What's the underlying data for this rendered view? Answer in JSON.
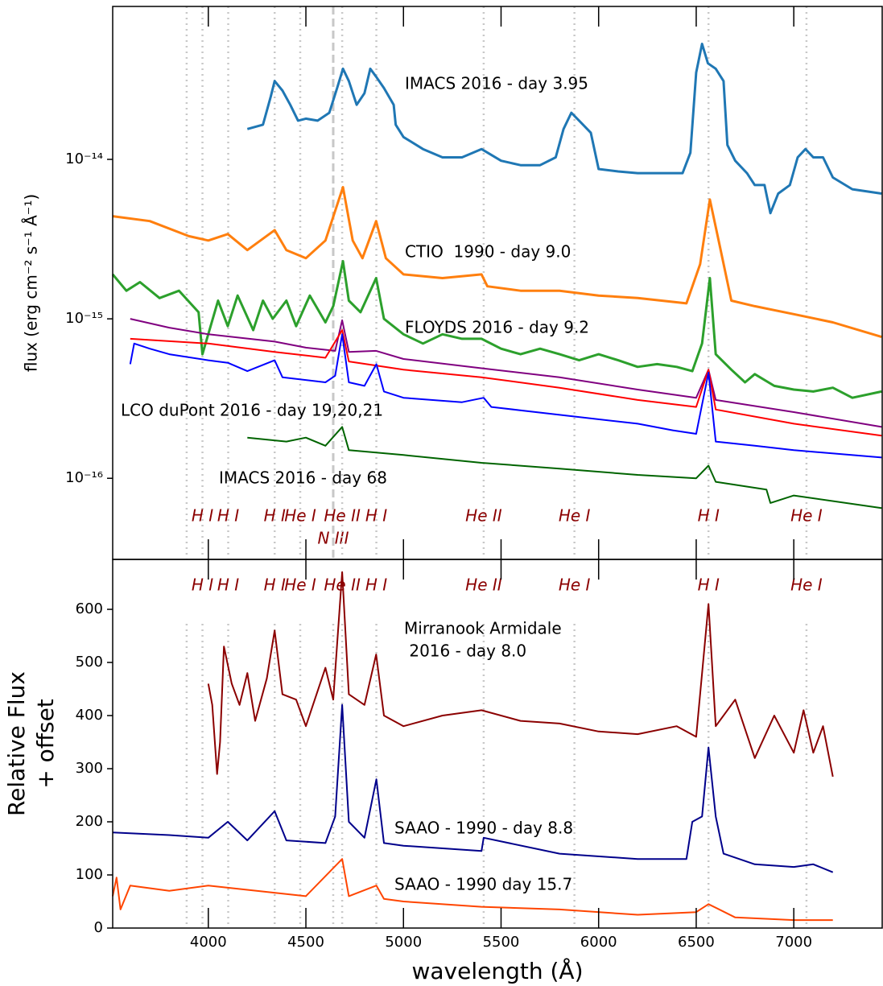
{
  "chart_data": [
    {
      "type": "line",
      "log_y": true,
      "ylabel": "flux (erg cm⁻² s⁻¹ Å⁻¹)",
      "xlim": [
        3510,
        7453
      ],
      "ylim": [
        3.1e-17,
        9.1e-14
      ],
      "yticks": [
        {
          "value": 1e-16,
          "label": "10⁻¹⁶"
        },
        {
          "value": 1e-15,
          "label": "10⁻¹⁵"
        },
        {
          "value": 1e-14,
          "label": "10⁻¹⁴"
        }
      ],
      "annotations": [
        "IMACS 2016 - day 3.95",
        "CTIO  1990 - day 9.0",
        "FLOYDS 2016 - day 9.2",
        "LCO duPont 2016 - day 19,20,21",
        "IMACS 2016 - day 68"
      ],
      "lines": [
        {
          "wavelength": 3889
        },
        {
          "wavelength": 3970,
          "label": "H I"
        },
        {
          "wavelength": 4102,
          "label": "H I"
        },
        {
          "wavelength": 4340,
          "label": "H I"
        },
        {
          "wavelength": 4471,
          "label": "He I"
        },
        {
          "wavelength": 4640,
          "label": "N III",
          "style": "dashed"
        },
        {
          "wavelength": 4686,
          "label": "He II"
        },
        {
          "wavelength": 4861,
          "label": "H I"
        },
        {
          "wavelength": 5411,
          "label": "He II"
        },
        {
          "wavelength": 5876,
          "label": "He I"
        },
        {
          "wavelength": 6563,
          "label": "H I"
        },
        {
          "wavelength": 7065,
          "label": "He I"
        }
      ],
      "series": [
        {
          "color": "#1f77b4",
          "x": [
            4200,
            4280,
            4320,
            4340,
            4380,
            4420,
            4460,
            4500,
            4560,
            4620,
            4660,
            4690,
            4720,
            4760,
            4800,
            4830,
            4860,
            4900,
            4950,
            4960,
            5000,
            5100,
            5200,
            5300,
            5400,
            5500,
            5600,
            5700,
            5780,
            5820,
            5860,
            5900,
            5960,
            6000,
            6100,
            6200,
            6300,
            6430,
            6470,
            6500,
            6530,
            6560,
            6600,
            6640,
            6660,
            6700,
            6760,
            6800,
            6850,
            6880,
            6920,
            6980,
            7020,
            7060,
            7100,
            7150,
            7200,
            7300,
            7450
          ],
          "values": [
            1.55e-14,
            1.65e-14,
            2.48e-14,
            3.1e-14,
            2.7e-14,
            2.2e-14,
            1.75e-14,
            1.8e-14,
            1.75e-14,
            1.96e-14,
            2.8e-14,
            3.7e-14,
            3.1e-14,
            2.2e-14,
            2.6e-14,
            3.7e-14,
            3.3e-14,
            2.8e-14,
            2.2e-14,
            1.65e-14,
            1.38e-14,
            1.16e-14,
            1.03e-14,
            1.03e-14,
            1.16e-14,
            9.8e-15,
            9.2e-15,
            9.2e-15,
            1.03e-14,
            1.55e-14,
            1.96e-14,
            1.75e-14,
            1.47e-14,
            8.7e-15,
            8.4e-15,
            8.2e-15,
            8.2e-15,
            8.2e-15,
            1.1e-14,
            3.5e-14,
            5.3e-14,
            4e-14,
            3.7e-14,
            3.1e-14,
            1.23e-14,
            9.8e-15,
            8.2e-15,
            6.9e-15,
            6.9e-15,
            4.6e-15,
            6.1e-15,
            6.9e-15,
            1.03e-14,
            1.16e-14,
            1.03e-14,
            1.03e-14,
            7.7e-15,
            6.5e-15,
            6.1e-15
          ]
        },
        {
          "color": "#ff7f0e",
          "x": [
            3510,
            3700,
            3900,
            4000,
            4100,
            4200,
            4340,
            4400,
            4500,
            4600,
            4690,
            4740,
            4790,
            4860,
            4910,
            5000,
            5200,
            5400,
            5430,
            5600,
            5800,
            6000,
            6200,
            6450,
            6520,
            6570,
            6620,
            6680,
            6800,
            7000,
            7200,
            7450
          ],
          "values": [
            4.4e-15,
            4.1e-15,
            3.3e-15,
            3.1e-15,
            3.4e-15,
            2.7e-15,
            3.6e-15,
            2.7e-15,
            2.4e-15,
            3.1e-15,
            6.7e-15,
            3.1e-15,
            2.4e-15,
            4.1e-15,
            2.4e-15,
            1.9e-15,
            1.8e-15,
            1.9e-15,
            1.6e-15,
            1.5e-15,
            1.5e-15,
            1.4e-15,
            1.35e-15,
            1.25e-15,
            2.2e-15,
            5.6e-15,
            2.9e-15,
            1.3e-15,
            1.2e-15,
            1.07e-15,
            9.5e-16,
            7.7e-16
          ]
        },
        {
          "color": "#2ca02c",
          "x": [
            3510,
            3580,
            3650,
            3750,
            3850,
            3950,
            3970,
            4050,
            4100,
            4150,
            4230,
            4280,
            4330,
            4400,
            4450,
            4520,
            4600,
            4640,
            4690,
            4720,
            4780,
            4860,
            4900,
            5000,
            5100,
            5200,
            5300,
            5400,
            5500,
            5600,
            5700,
            5800,
            5900,
            6000,
            6100,
            6200,
            6300,
            6400,
            6480,
            6530,
            6570,
            6600,
            6680,
            6750,
            6800,
            6900,
            7000,
            7100,
            7200,
            7300,
            7450
          ],
          "values": [
            1.9e-15,
            1.5e-15,
            1.7e-15,
            1.35e-15,
            1.5e-15,
            1.1e-15,
            6e-16,
            1.3e-15,
            9e-16,
            1.4e-15,
            8.5e-16,
            1.3e-15,
            1e-15,
            1.3e-15,
            9e-16,
            1.4e-15,
            9.5e-16,
            1.2e-15,
            2.3e-15,
            1.3e-15,
            1.1e-15,
            1.8e-15,
            1e-15,
            8e-16,
            7e-16,
            8e-16,
            7.5e-16,
            7.5e-16,
            6.5e-16,
            6e-16,
            6.5e-16,
            6e-16,
            5.5e-16,
            6e-16,
            5.5e-16,
            5e-16,
            5.2e-16,
            5e-16,
            4.7e-16,
            7e-16,
            1.8e-15,
            6e-16,
            4.8e-16,
            4e-16,
            4.5e-16,
            3.8e-16,
            3.6e-16,
            3.5e-16,
            3.7e-16,
            3.2e-16,
            3.5e-16
          ]
        },
        {
          "color": "#800080",
          "x": [
            3600,
            3800,
            4000,
            4340,
            4500,
            4650,
            4686,
            4720,
            4860,
            5000,
            5400,
            5800,
            6200,
            6500,
            6563,
            6600,
            7000,
            7450
          ],
          "values": [
            1e-15,
            8.8e-16,
            8e-16,
            7.2e-16,
            6.6e-16,
            6.3e-16,
            9.8e-16,
            6.2e-16,
            6.3e-16,
            5.6e-16,
            4.9e-16,
            4.3e-16,
            3.6e-16,
            3.2e-16,
            4.8e-16,
            3.1e-16,
            2.6e-16,
            2.1e-16
          ]
        },
        {
          "color": "#ff0000",
          "x": [
            3600,
            4000,
            4340,
            4600,
            4686,
            4720,
            5000,
            5400,
            5800,
            6200,
            6500,
            6563,
            6600,
            7000,
            7450
          ],
          "values": [
            7.5e-16,
            7e-16,
            6.2e-16,
            5.7e-16,
            8.5e-16,
            5.4e-16,
            4.8e-16,
            4.3e-16,
            3.7e-16,
            3.1e-16,
            2.8e-16,
            4.8e-16,
            2.7e-16,
            2.2e-16,
            1.85e-16
          ]
        },
        {
          "color": "#0000ff",
          "x": [
            3600,
            3620,
            3700,
            3800,
            4000,
            4100,
            4200,
            4340,
            4380,
            4600,
            4650,
            4686,
            4720,
            4800,
            4861,
            4900,
            5000,
            5300,
            5411,
            5450,
            5800,
            6200,
            6380,
            6500,
            6563,
            6600,
            6800,
            7000,
            7450
          ],
          "values": [
            5.2e-16,
            7e-16,
            6.5e-16,
            6e-16,
            5.5e-16,
            5.3e-16,
            4.7e-16,
            5.5e-16,
            4.3e-16,
            4e-16,
            4.4e-16,
            8e-16,
            4e-16,
            3.8e-16,
            5.2e-16,
            3.5e-16,
            3.2e-16,
            3e-16,
            3.2e-16,
            2.8e-16,
            2.5e-16,
            2.2e-16,
            2e-16,
            1.9e-16,
            4.6e-16,
            1.7e-16,
            1.6e-16,
            1.5e-16,
            1.35e-16
          ]
        },
        {
          "color": "#006400",
          "x": [
            4200,
            4400,
            4500,
            4600,
            4686,
            4720,
            5000,
            5400,
            5800,
            6200,
            6500,
            6563,
            6600,
            6860,
            6880,
            7000,
            7450
          ],
          "values": [
            1.8e-16,
            1.7e-16,
            1.8e-16,
            1.6e-16,
            2.1e-16,
            1.5e-16,
            1.4e-16,
            1.25e-16,
            1.15e-16,
            1.05e-16,
            1e-16,
            1.2e-16,
            9.5e-17,
            8.5e-17,
            7e-17,
            7.8e-17,
            6.5e-17
          ]
        }
      ]
    },
    {
      "type": "line",
      "log_y": false,
      "ylabel": [
        "Relative Flux",
        "+ offset"
      ],
      "xlabel": "wavelength (Å)",
      "xlim": [
        3510,
        7453
      ],
      "xticks": [
        4000,
        4500,
        5000,
        5500,
        6000,
        6500,
        7000
      ],
      "ylim": [
        0,
        694
      ],
      "yticks": [
        0,
        100,
        200,
        300,
        400,
        500,
        600
      ],
      "annotations": [
        "Mirranook Armidale",
        " 2016 - day 8.0",
        "SAAO - 1990 - day 8.8",
        "SAAO - 1990 day 15.7"
      ],
      "lines": [
        {
          "wavelength": 3889
        },
        {
          "wavelength": 3970,
          "label": "H I"
        },
        {
          "wavelength": 4102,
          "label": "H I"
        },
        {
          "wavelength": 4340,
          "label": "H I"
        },
        {
          "wavelength": 4471,
          "label": "He I"
        },
        {
          "wavelength": 4640
        },
        {
          "wavelength": 4686,
          "label": "He II"
        },
        {
          "wavelength": 4861,
          "label": "H I"
        },
        {
          "wavelength": 5411,
          "label": "He II"
        },
        {
          "wavelength": 5876,
          "label": "He I"
        },
        {
          "wavelength": 6563,
          "label": "H I"
        },
        {
          "wavelength": 7065,
          "label": "He I"
        }
      ],
      "series": [
        {
          "color": "#8b0000",
          "x": [
            4000,
            4020,
            4045,
            4060,
            4080,
            4120,
            4160,
            4200,
            4240,
            4300,
            4340,
            4380,
            4450,
            4500,
            4600,
            4640,
            4686,
            4720,
            4800,
            4860,
            4900,
            5000,
            5200,
            5400,
            5600,
            5800,
            6000,
            6200,
            6400,
            6500,
            6563,
            6600,
            6700,
            6800,
            6900,
            7000,
            7050,
            7100,
            7150,
            7200
          ],
          "values": [
            460,
            420,
            290,
            350,
            530,
            460,
            420,
            480,
            390,
            470,
            560,
            440,
            430,
            380,
            490,
            430,
            670,
            440,
            420,
            515,
            400,
            380,
            400,
            410,
            390,
            385,
            370,
            365,
            380,
            360,
            610,
            380,
            430,
            320,
            400,
            330,
            410,
            330,
            380,
            285
          ]
        },
        {
          "color": "#00008b",
          "x": [
            3510,
            3800,
            4000,
            4100,
            4200,
            4340,
            4400,
            4600,
            4650,
            4686,
            4720,
            4800,
            4861,
            4900,
            5000,
            5400,
            5411,
            5800,
            6200,
            6450,
            6480,
            6530,
            6563,
            6600,
            6640,
            6800,
            7000,
            7100,
            7200
          ],
          "values": [
            180,
            175,
            170,
            200,
            165,
            220,
            165,
            160,
            210,
            420,
            200,
            170,
            280,
            160,
            155,
            145,
            170,
            140,
            130,
            130,
            200,
            210,
            340,
            210,
            140,
            120,
            115,
            120,
            105
          ]
        },
        {
          "color": "#ff4500",
          "x": [
            3510,
            3530,
            3550,
            3600,
            3800,
            4000,
            4500,
            4686,
            4720,
            4861,
            4900,
            5000,
            5400,
            5800,
            6200,
            6500,
            6563,
            6700,
            7000,
            7200
          ],
          "values": [
            60,
            95,
            35,
            80,
            70,
            80,
            60,
            130,
            60,
            80,
            55,
            50,
            40,
            35,
            25,
            30,
            45,
            20,
            15,
            15
          ]
        }
      ]
    }
  ]
}
